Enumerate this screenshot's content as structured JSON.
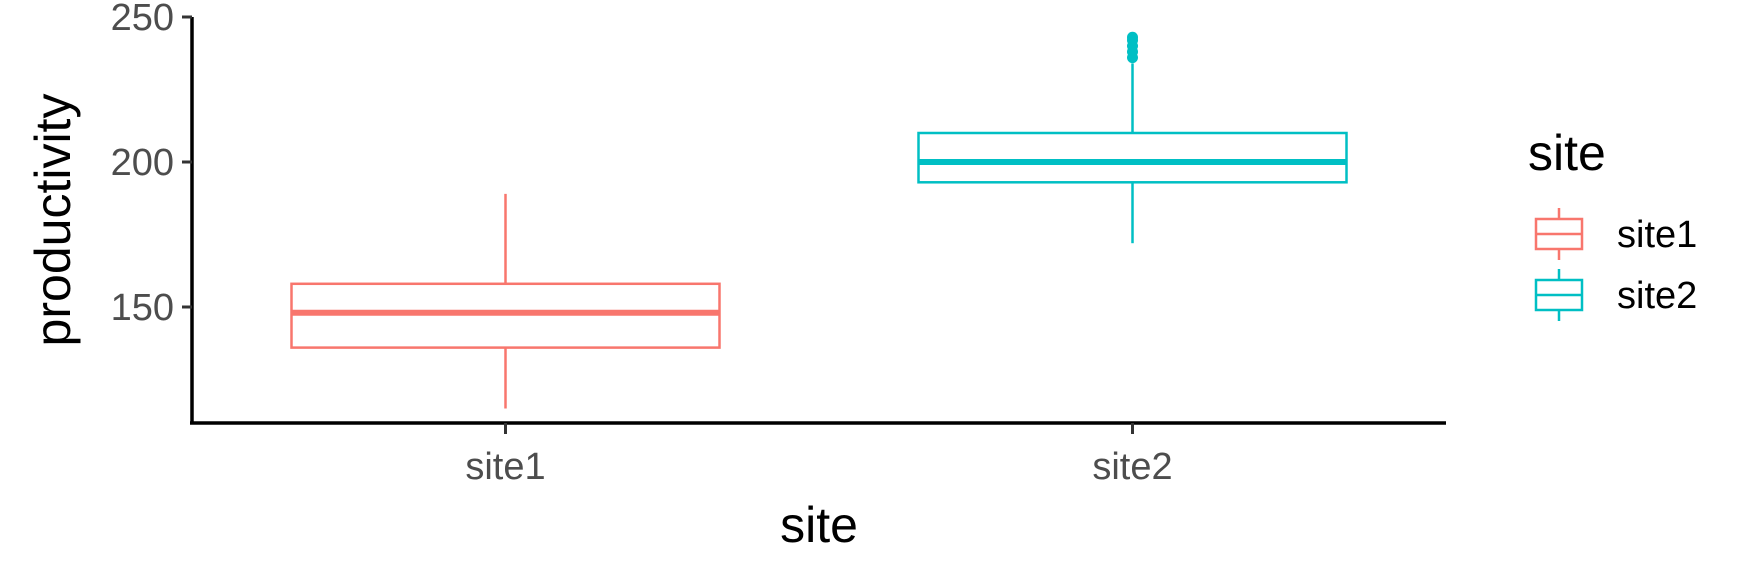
{
  "chart_data": {
    "type": "boxplot",
    "title": "",
    "xlabel": "site",
    "ylabel": "productivity",
    "ylim": [
      110,
      250
    ],
    "yticks": [
      150,
      200,
      250
    ],
    "grid": false,
    "categories": [
      "site1",
      "site2"
    ],
    "series": [
      {
        "name": "site1",
        "color": "#F8766D",
        "min": 115,
        "q1": 136,
        "median": 148,
        "q3": 158,
        "max": 189,
        "outliers": []
      },
      {
        "name": "site2",
        "color": "#00BFC4",
        "min": 172,
        "q1": 193,
        "median": 200,
        "q3": 210,
        "max": 234,
        "outliers": [
          236,
          238,
          240,
          242,
          243
        ]
      }
    ],
    "legend": {
      "title": "site",
      "position": "right",
      "entries": [
        "site1",
        "site2"
      ]
    }
  }
}
